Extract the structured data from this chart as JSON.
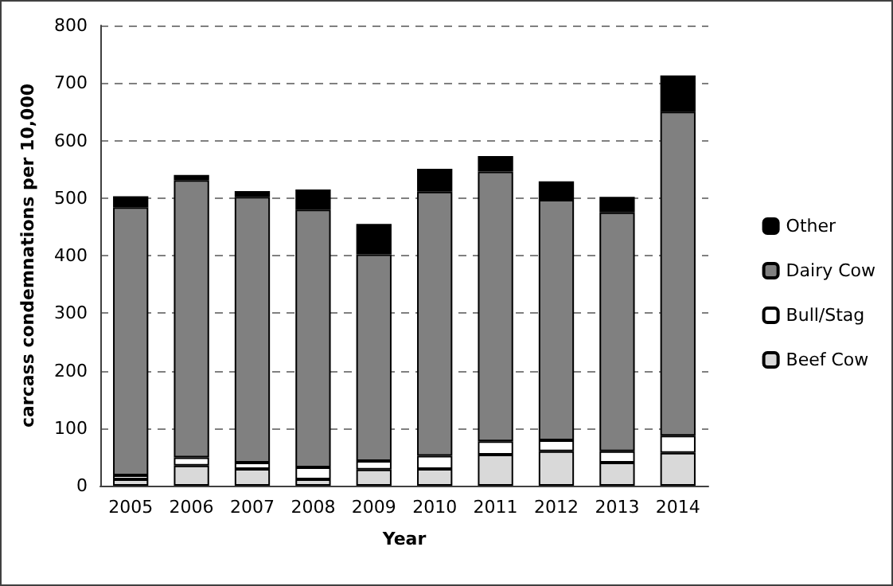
{
  "chart_data": {
    "type": "bar",
    "stacked": true,
    "xlabel": "Year",
    "ylabel": "carcass condemnations per 10,000",
    "categories": [
      "2005",
      "2006",
      "2007",
      "2008",
      "2009",
      "2010",
      "2011",
      "2012",
      "2013",
      "2014"
    ],
    "series": [
      {
        "name": "Beef Cow",
        "color": "#d9d9d9",
        "values": [
          11,
          35,
          29,
          11,
          28,
          29,
          54,
          60,
          40,
          57
        ]
      },
      {
        "name": "Bull/Stag",
        "color": "#ffffff",
        "values": [
          7,
          14,
          11,
          21,
          15,
          23,
          23,
          19,
          20,
          30
        ]
      },
      {
        "name": "Dairy Cow",
        "color": "#808080",
        "values": [
          466,
          482,
          462,
          448,
          359,
          459,
          469,
          418,
          415,
          563
        ]
      },
      {
        "name": "Other",
        "color": "#000000",
        "values": [
          19,
          9,
          10,
          35,
          53,
          40,
          27,
          32,
          27,
          63
        ]
      }
    ],
    "ylim": [
      0,
      800
    ],
    "yticks": [
      0,
      100,
      200,
      300,
      400,
      500,
      600,
      700,
      800
    ],
    "grid": "y",
    "legend": "right"
  }
}
